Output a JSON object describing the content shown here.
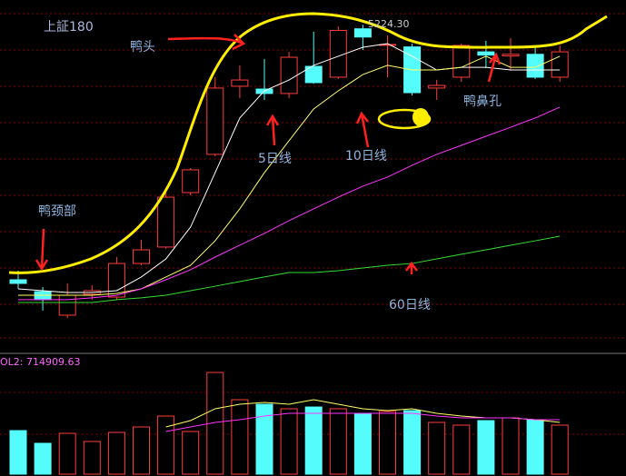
{
  "chart_data": {
    "type": "candlestick",
    "title": "上証180",
    "open": [
      3675,
      3603,
      3460,
      3587,
      3570,
      3774,
      3874,
      4205,
      4437,
      4851,
      4834,
      4807,
      4972,
      4906,
      5200,
      5100,
      5090,
      4840,
      4906,
      5060,
      5035,
      5045,
      4906
    ],
    "high": [
      3730,
      3631,
      3653,
      3642,
      3813,
      3918,
      4216,
      4354,
      4906,
      4978,
      5016,
      5060,
      5182,
      5215,
      5224.3,
      5160,
      5110,
      4890,
      5110,
      5127,
      5143,
      5099,
      5099
    ],
    "low": [
      3620,
      3488,
      3443,
      3554,
      3554,
      3763,
      3863,
      4188,
      4426,
      4779,
      4768,
      4779,
      4867,
      4895,
      5071,
      4906,
      4795,
      4768,
      4878,
      4961,
      4945,
      4895,
      4878
    ],
    "close": [
      3653,
      3554,
      3581,
      3609,
      3774,
      3857,
      4177,
      4343,
      4840,
      4889,
      4807,
      5027,
      4873,
      5190,
      5150,
      5105,
      4812,
      4856,
      5099,
      5040,
      5045,
      4906,
      5060
    ],
    "up_color": "#ff3c3c",
    "down_color": "#54fcfc",
    "ylim": [
      3250,
      5375
    ],
    "lines": [
      {
        "color": "#ffffff",
        "values": [
          3620,
          3609,
          3598,
          3598,
          3609,
          3692,
          3802,
          3995,
          4326,
          4658,
          4823,
          4889,
          4978,
          5033,
          5088,
          5110,
          5033,
          4950,
          4966,
          4966,
          4950,
          4950,
          4950
        ]
      },
      {
        "color": "#ffff66",
        "values": [
          3581,
          3581,
          3581,
          3581,
          3592,
          3620,
          3692,
          3763,
          3912,
          4106,
          4326,
          4520,
          4713,
          4823,
          4922,
          4978,
          4950,
          4950,
          4966,
          5033,
          4966,
          4966,
          5033
        ]
      },
      {
        "color": "#ff33ff",
        "values": [
          3554,
          3554,
          3554,
          3565,
          3581,
          3620,
          3675,
          3736,
          3813,
          3885,
          3957,
          4034,
          4106,
          4177,
          4244,
          4299,
          4371,
          4437,
          4492,
          4547,
          4602,
          4658,
          4724
        ]
      },
      {
        "color": "#33dd33",
        "values": [
          3537,
          3537,
          3537,
          3537,
          3554,
          3565,
          3581,
          3609,
          3636,
          3664,
          3692,
          3719,
          3719,
          3730,
          3747,
          3763,
          3774,
          3802,
          3830,
          3857,
          3885,
          3912,
          3940
        ]
      }
    ],
    "annotations": [
      "5224.30",
      "鸭头",
      "鸭颈部",
      "5日线",
      "10日线",
      "60日线",
      "鸭鼻孔"
    ],
    "volume": {
      "label": "OL2: 714909.63",
      "ylim": [
        0,
        1400000
      ],
      "values": [
        574000,
        407000,
        538000,
        431000,
        550000,
        622000,
        766000,
        562000,
        1340000,
        981000,
        921000,
        862000,
        885000,
        862000,
        802000,
        826000,
        838000,
        682000,
        646000,
        706000,
        742000,
        718000,
        646000
      ],
      "lines": [
        {
          "color": "#ffff66",
          "values": [
            null,
            null,
            null,
            null,
            null,
            null,
            622000,
            706000,
            862000,
            921000,
            945000,
            921000,
            981000,
            921000,
            862000,
            838000,
            862000,
            802000,
            766000,
            742000,
            742000,
            718000,
            682000
          ]
        },
        {
          "color": "#ff33ff",
          "values": [
            null,
            null,
            null,
            null,
            null,
            null,
            562000,
            622000,
            682000,
            718000,
            766000,
            802000,
            802000,
            802000,
            802000,
            802000,
            802000,
            766000,
            742000,
            742000,
            742000,
            718000,
            718000
          ]
        }
      ]
    }
  }
}
